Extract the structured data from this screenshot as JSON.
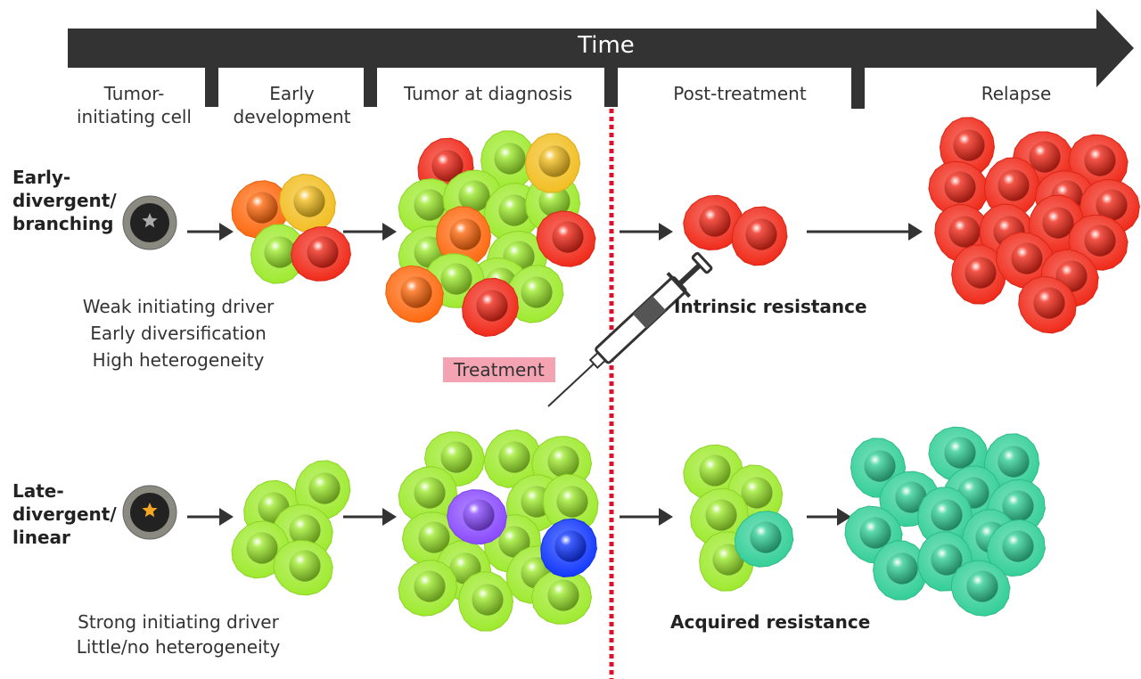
{
  "timeline": {
    "label": "Time",
    "stages": [
      "Tumor-\ninitiating cell",
      "Early\ndevelopment",
      "Tumor at diagnosis",
      "Post-treatment",
      "Relapse"
    ]
  },
  "rows": {
    "top": {
      "label": "Early-\ndivergent/\nbranching",
      "description": [
        "Weak initiating driver",
        "Early diversification",
        "High heterogeneity"
      ],
      "resistance": "Intrinsic resistance"
    },
    "bottom": {
      "label": "Late-\ndivergent/\nlinear",
      "description": [
        "Strong initiating driver",
        "Little/no heterogeneity"
      ],
      "resistance": "Acquired resistance"
    }
  },
  "treatment": {
    "label": "Treatment",
    "icon": "syringe-icon"
  },
  "colors": {
    "bar": "#333333",
    "divider": "#e0102a",
    "treatment_box": "#f4a3b3",
    "green": "#9eea2e",
    "red": "#f02a1a",
    "orange": "#ff6a10",
    "yellow": "#f2be22",
    "teal": "#34cf98",
    "purple": "#8a4bff",
    "blue": "#1238ff"
  }
}
